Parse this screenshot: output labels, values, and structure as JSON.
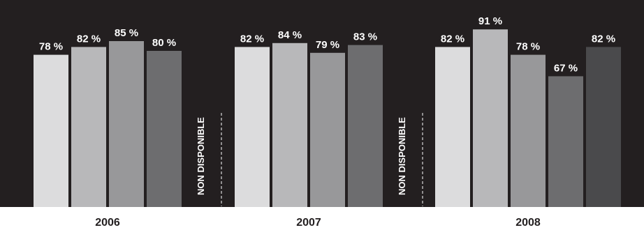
{
  "chart_data": {
    "type": "bar",
    "categories": [
      "2006",
      "2007",
      "2008"
    ],
    "unit": "%",
    "groups": [
      {
        "year": "2006",
        "bars": [
          {
            "value": 78,
            "label": "78 %",
            "color": "#dcdcdd"
          },
          {
            "value": 82,
            "label": "82 %",
            "color": "#b8b8ba"
          },
          {
            "value": 85,
            "label": "85 %",
            "color": "#98989a"
          },
          {
            "value": 80,
            "label": "80 %",
            "color": "#6d6d6f"
          }
        ]
      },
      {
        "year": "2007",
        "bars": [
          {
            "value": 82,
            "label": "82 %",
            "color": "#dcdcdd"
          },
          {
            "value": 84,
            "label": "84 %",
            "color": "#b8b8ba"
          },
          {
            "value": 79,
            "label": "79 %",
            "color": "#98989a"
          },
          {
            "value": 83,
            "label": "83 %",
            "color": "#6d6d6f"
          }
        ]
      },
      {
        "year": "2008",
        "bars": [
          {
            "value": 82,
            "label": "82 %",
            "color": "#dcdcdd"
          },
          {
            "value": 91,
            "label": "91 %",
            "color": "#b8b8ba"
          },
          {
            "value": 78,
            "label": "78 %",
            "color": "#98989a"
          },
          {
            "value": 67,
            "label": "67 %",
            "color": "#6d6d6f"
          },
          {
            "value": 82,
            "label": "82 %",
            "color": "#4a4a4c"
          }
        ]
      }
    ],
    "not_available": [
      {
        "after": "2006",
        "label": "NON DISPONIBLE"
      },
      {
        "after": "2007",
        "label": "NON DISPONIBLE"
      }
    ],
    "ylim": [
      0,
      100
    ],
    "grid": false,
    "legend": "none",
    "colors": {
      "background": "#231f20",
      "text": "#ffffff",
      "axis_label": "#231f20"
    }
  }
}
